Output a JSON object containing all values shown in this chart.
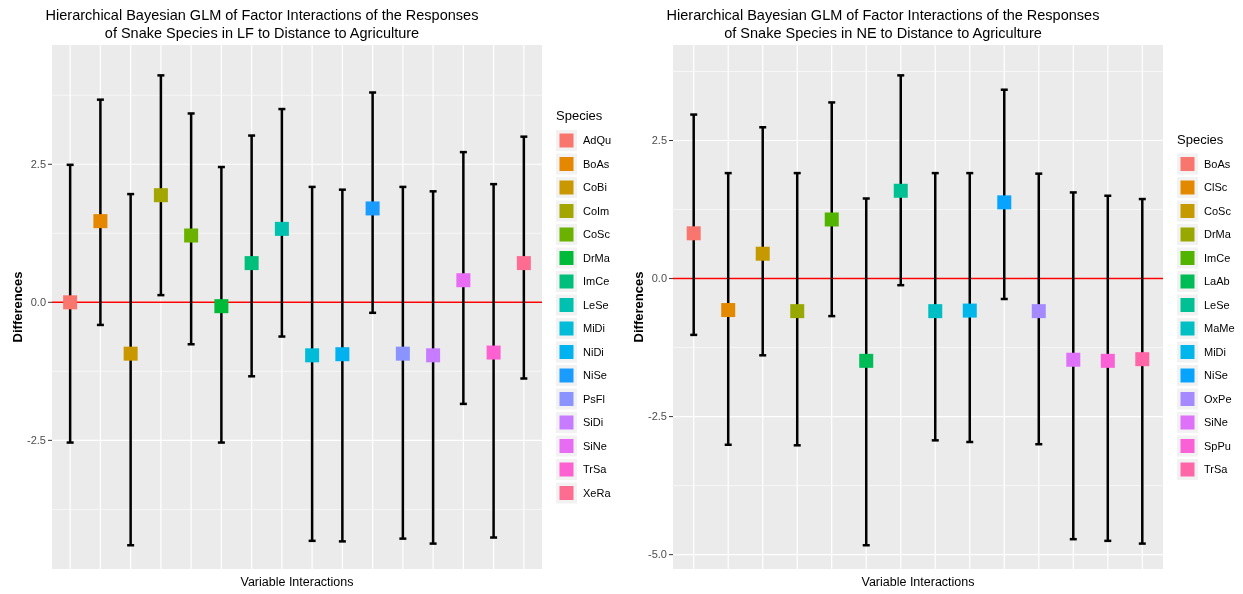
{
  "chart_data": [
    {
      "type": "scatter",
      "title": "Hierarchical Bayesian GLM of Factor Interactions of the Responses\nof Snake Species in LF to Distance to Agriculture",
      "xlabel": "Variable Interactions",
      "ylabel": "Differences",
      "legend_title": "Species",
      "legend": "right",
      "grid": true,
      "marker": "square",
      "ylim": [
        -4.83,
        4.66
      ],
      "yticks": [
        {
          "value": -2.5,
          "label": "-2.5"
        },
        {
          "value": 0,
          "label": "0.0"
        },
        {
          "value": 2.5,
          "label": "2.5"
        }
      ],
      "categories": [
        null,
        null,
        null,
        null,
        null,
        null,
        null,
        null,
        null,
        null,
        null,
        null,
        null,
        null,
        null,
        null
      ],
      "ref_lines": [
        {
          "axis": "y",
          "value": 0,
          "color": "#ff0000"
        }
      ],
      "series": [
        {
          "name": "AdQu",
          "color": "#f8766d",
          "values": [
            0.0,
            null,
            null,
            null,
            null,
            null,
            null,
            null,
            null,
            null,
            null,
            null,
            null,
            null,
            null,
            null
          ],
          "errors": [
            [
              -2.54,
              2.49
            ],
            null,
            null,
            null,
            null,
            null,
            null,
            null,
            null,
            null,
            null,
            null,
            null,
            null,
            null,
            null
          ]
        },
        {
          "name": "BoAs",
          "color": "#e58700",
          "values": [
            null,
            1.47,
            null,
            null,
            null,
            null,
            null,
            null,
            null,
            null,
            null,
            null,
            null,
            null,
            null,
            null
          ],
          "errors": [
            null,
            [
              -0.41,
              3.67
            ],
            null,
            null,
            null,
            null,
            null,
            null,
            null,
            null,
            null,
            null,
            null,
            null,
            null,
            null
          ]
        },
        {
          "name": "CoBi",
          "color": "#c99800",
          "values": [
            null,
            null,
            -0.93,
            null,
            null,
            null,
            null,
            null,
            null,
            null,
            null,
            null,
            null,
            null,
            null,
            null
          ],
          "errors": [
            null,
            null,
            [
              -4.4,
              1.96
            ],
            null,
            null,
            null,
            null,
            null,
            null,
            null,
            null,
            null,
            null,
            null,
            null,
            null
          ]
        },
        {
          "name": "CoIm",
          "color": "#a3a500",
          "values": [
            null,
            null,
            null,
            1.94,
            null,
            null,
            null,
            null,
            null,
            null,
            null,
            null,
            null,
            null,
            null,
            null
          ],
          "errors": [
            null,
            null,
            null,
            [
              0.13,
              4.11
            ],
            null,
            null,
            null,
            null,
            null,
            null,
            null,
            null,
            null,
            null,
            null,
            null
          ]
        },
        {
          "name": "CoSc",
          "color": "#6bb100",
          "values": [
            null,
            null,
            null,
            null,
            1.21,
            null,
            null,
            null,
            null,
            null,
            null,
            null,
            null,
            null,
            null,
            null
          ],
          "errors": [
            null,
            null,
            null,
            null,
            [
              -0.76,
              3.42
            ],
            null,
            null,
            null,
            null,
            null,
            null,
            null,
            null,
            null,
            null,
            null
          ]
        },
        {
          "name": "DrMa",
          "color": "#00ba38",
          "values": [
            null,
            null,
            null,
            null,
            null,
            -0.07,
            null,
            null,
            null,
            null,
            null,
            null,
            null,
            null,
            null,
            null
          ],
          "errors": [
            null,
            null,
            null,
            null,
            null,
            [
              -2.54,
              2.45
            ],
            null,
            null,
            null,
            null,
            null,
            null,
            null,
            null,
            null,
            null
          ]
        },
        {
          "name": "ImCe",
          "color": "#00bf7d",
          "values": [
            null,
            null,
            null,
            null,
            null,
            null,
            0.71,
            null,
            null,
            null,
            null,
            null,
            null,
            null,
            null,
            null
          ],
          "errors": [
            null,
            null,
            null,
            null,
            null,
            null,
            [
              -1.34,
              3.02
            ],
            null,
            null,
            null,
            null,
            null,
            null,
            null,
            null,
            null
          ]
        },
        {
          "name": "LeSe",
          "color": "#00c0af",
          "values": [
            null,
            null,
            null,
            null,
            null,
            null,
            null,
            1.33,
            null,
            null,
            null,
            null,
            null,
            null,
            null,
            null
          ],
          "errors": [
            null,
            null,
            null,
            null,
            null,
            null,
            null,
            [
              -0.62,
              3.5
            ],
            null,
            null,
            null,
            null,
            null,
            null,
            null,
            null
          ]
        },
        {
          "name": "MiDi",
          "color": "#00bcd8",
          "values": [
            null,
            null,
            null,
            null,
            null,
            null,
            null,
            null,
            -0.96,
            null,
            null,
            null,
            null,
            null,
            null,
            null
          ],
          "errors": [
            null,
            null,
            null,
            null,
            null,
            null,
            null,
            null,
            [
              -4.32,
              2.09
            ],
            null,
            null,
            null,
            null,
            null,
            null,
            null
          ]
        },
        {
          "name": "NiDi",
          "color": "#00b2f0",
          "values": [
            null,
            null,
            null,
            null,
            null,
            null,
            null,
            null,
            null,
            -0.94,
            null,
            null,
            null,
            null,
            null,
            null
          ],
          "errors": [
            null,
            null,
            null,
            null,
            null,
            null,
            null,
            null,
            null,
            [
              -4.33,
              2.04
            ],
            null,
            null,
            null,
            null,
            null,
            null
          ]
        },
        {
          "name": "NiSe",
          "color": "#1a9cff",
          "values": [
            null,
            null,
            null,
            null,
            null,
            null,
            null,
            null,
            null,
            null,
            1.7,
            null,
            null,
            null,
            null,
            null
          ],
          "errors": [
            null,
            null,
            null,
            null,
            null,
            null,
            null,
            null,
            null,
            null,
            [
              -0.19,
              3.8
            ],
            null,
            null,
            null,
            null,
            null
          ]
        },
        {
          "name": "PsFl",
          "color": "#8b93ff",
          "values": [
            null,
            null,
            null,
            null,
            null,
            null,
            null,
            null,
            null,
            null,
            null,
            -0.93,
            null,
            null,
            null,
            null
          ],
          "errors": [
            null,
            null,
            null,
            null,
            null,
            null,
            null,
            null,
            null,
            null,
            null,
            [
              -4.28,
              2.09
            ],
            null,
            null,
            null,
            null
          ]
        },
        {
          "name": "SiDi",
          "color": "#c77cff",
          "values": [
            null,
            null,
            null,
            null,
            null,
            null,
            null,
            null,
            null,
            null,
            null,
            null,
            -0.96,
            null,
            null,
            null
          ],
          "errors": [
            null,
            null,
            null,
            null,
            null,
            null,
            null,
            null,
            null,
            null,
            null,
            null,
            [
              -4.37,
              2.01
            ],
            null,
            null,
            null
          ]
        },
        {
          "name": "SiNe",
          "color": "#e76bf3",
          "values": [
            null,
            null,
            null,
            null,
            null,
            null,
            null,
            null,
            null,
            null,
            null,
            null,
            null,
            0.4,
            null,
            null
          ],
          "errors": [
            null,
            null,
            null,
            null,
            null,
            null,
            null,
            null,
            null,
            null,
            null,
            null,
            null,
            [
              -1.84,
              2.72
            ],
            null,
            null
          ]
        },
        {
          "name": "TrSa",
          "color": "#fd61d1",
          "values": [
            null,
            null,
            null,
            null,
            null,
            null,
            null,
            null,
            null,
            null,
            null,
            null,
            null,
            null,
            -0.91,
            null
          ],
          "errors": [
            null,
            null,
            null,
            null,
            null,
            null,
            null,
            null,
            null,
            null,
            null,
            null,
            null,
            null,
            [
              -4.26,
              2.14
            ],
            null
          ]
        },
        {
          "name": "XeRa",
          "color": "#ff6c91",
          "values": [
            null,
            null,
            null,
            null,
            null,
            null,
            null,
            null,
            null,
            null,
            null,
            null,
            null,
            null,
            null,
            0.71
          ],
          "errors": [
            null,
            null,
            null,
            null,
            null,
            null,
            null,
            null,
            null,
            null,
            null,
            null,
            null,
            null,
            null,
            [
              -1.38,
              3.0
            ]
          ]
        }
      ]
    },
    {
      "type": "scatter",
      "title": "Hierarchical Bayesian GLM of Factor Interactions of the Responses\nof Snake Species in NE to Distance to Agriculture",
      "xlabel": "Variable Interactions",
      "ylabel": "Differences",
      "legend_title": "Species",
      "legend": "right",
      "grid": true,
      "marker": "square",
      "ylim": [
        -5.26,
        4.23
      ],
      "yticks": [
        {
          "value": -5,
          "label": "-5.0"
        },
        {
          "value": -2.5,
          "label": "-2.5"
        },
        {
          "value": 0,
          "label": "0.0"
        },
        {
          "value": 2.5,
          "label": "2.5"
        }
      ],
      "categories": [
        null,
        null,
        null,
        null,
        null,
        null,
        null,
        null,
        null,
        null,
        null,
        null,
        null,
        null
      ],
      "ref_lines": [
        {
          "axis": "y",
          "value": 0,
          "color": "#ff0000"
        }
      ],
      "series": [
        {
          "name": "BoAs",
          "color": "#f8766d",
          "values": [
            0.82,
            null,
            null,
            null,
            null,
            null,
            null,
            null,
            null,
            null,
            null,
            null,
            null,
            null
          ],
          "errors": [
            [
              -1.02,
              2.97
            ],
            null,
            null,
            null,
            null,
            null,
            null,
            null,
            null,
            null,
            null,
            null,
            null,
            null
          ]
        },
        {
          "name": "ClSc",
          "color": "#e38900",
          "values": [
            null,
            -0.57,
            null,
            null,
            null,
            null,
            null,
            null,
            null,
            null,
            null,
            null,
            null,
            null
          ],
          "errors": [
            null,
            [
              -3.01,
              1.91
            ],
            null,
            null,
            null,
            null,
            null,
            null,
            null,
            null,
            null,
            null,
            null,
            null
          ]
        },
        {
          "name": "CoSc",
          "color": "#c49a00",
          "values": [
            null,
            null,
            0.45,
            null,
            null,
            null,
            null,
            null,
            null,
            null,
            null,
            null,
            null,
            null
          ],
          "errors": [
            null,
            null,
            [
              -1.39,
              2.74
            ],
            null,
            null,
            null,
            null,
            null,
            null,
            null,
            null,
            null,
            null,
            null
          ]
        },
        {
          "name": "DrMa",
          "color": "#99a800",
          "values": [
            null,
            null,
            null,
            -0.59,
            null,
            null,
            null,
            null,
            null,
            null,
            null,
            null,
            null,
            null
          ],
          "errors": [
            null,
            null,
            null,
            [
              -3.02,
              1.91
            ],
            null,
            null,
            null,
            null,
            null,
            null,
            null,
            null,
            null,
            null
          ]
        },
        {
          "name": "ImCe",
          "color": "#53b400",
          "values": [
            null,
            null,
            null,
            null,
            1.07,
            null,
            null,
            null,
            null,
            null,
            null,
            null,
            null,
            null
          ],
          "errors": [
            null,
            null,
            null,
            null,
            [
              -0.68,
              3.19
            ],
            null,
            null,
            null,
            null,
            null,
            null,
            null,
            null,
            null
          ]
        },
        {
          "name": "LaAb",
          "color": "#00bc56",
          "values": [
            null,
            null,
            null,
            null,
            null,
            -1.49,
            null,
            null,
            null,
            null,
            null,
            null,
            null,
            null
          ],
          "errors": [
            null,
            null,
            null,
            null,
            null,
            [
              -4.83,
              1.45
            ],
            null,
            null,
            null,
            null,
            null,
            null,
            null,
            null
          ]
        },
        {
          "name": "LeSe",
          "color": "#00c094",
          "values": [
            null,
            null,
            null,
            null,
            null,
            null,
            1.59,
            null,
            null,
            null,
            null,
            null,
            null,
            null
          ],
          "errors": [
            null,
            null,
            null,
            null,
            null,
            null,
            [
              -0.12,
              3.68
            ],
            null,
            null,
            null,
            null,
            null,
            null,
            null
          ]
        },
        {
          "name": "MaMe",
          "color": "#00bfc4",
          "values": [
            null,
            null,
            null,
            null,
            null,
            null,
            null,
            -0.59,
            null,
            null,
            null,
            null,
            null,
            null
          ],
          "errors": [
            null,
            null,
            null,
            null,
            null,
            null,
            null,
            [
              -2.93,
              1.91
            ],
            null,
            null,
            null,
            null,
            null,
            null
          ]
        },
        {
          "name": "MiDi",
          "color": "#00b6eb",
          "values": [
            null,
            null,
            null,
            null,
            null,
            null,
            null,
            null,
            -0.58,
            null,
            null,
            null,
            null,
            null
          ],
          "errors": [
            null,
            null,
            null,
            null,
            null,
            null,
            null,
            null,
            [
              -2.96,
              1.91
            ],
            null,
            null,
            null,
            null,
            null
          ]
        },
        {
          "name": "NiSe",
          "color": "#06a4ff",
          "values": [
            null,
            null,
            null,
            null,
            null,
            null,
            null,
            null,
            null,
            1.38,
            null,
            null,
            null,
            null
          ],
          "errors": [
            null,
            null,
            null,
            null,
            null,
            null,
            null,
            null,
            null,
            [
              -0.37,
              3.42
            ],
            null,
            null,
            null,
            null
          ]
        },
        {
          "name": "OxPe",
          "color": "#a58aff",
          "values": [
            null,
            null,
            null,
            null,
            null,
            null,
            null,
            null,
            null,
            null,
            -0.59,
            null,
            null,
            null
          ],
          "errors": [
            null,
            null,
            null,
            null,
            null,
            null,
            null,
            null,
            null,
            null,
            [
              -3.0,
              1.9
            ],
            null,
            null,
            null
          ]
        },
        {
          "name": "SiNe",
          "color": "#df70f8",
          "values": [
            null,
            null,
            null,
            null,
            null,
            null,
            null,
            null,
            null,
            null,
            null,
            -1.47,
            null,
            null
          ],
          "errors": [
            null,
            null,
            null,
            null,
            null,
            null,
            null,
            null,
            null,
            null,
            null,
            [
              -4.72,
              1.56
            ],
            null,
            null
          ]
        },
        {
          "name": "SpPu",
          "color": "#fb61d7",
          "values": [
            null,
            null,
            null,
            null,
            null,
            null,
            null,
            null,
            null,
            null,
            null,
            null,
            -1.49,
            null
          ],
          "errors": [
            null,
            null,
            null,
            null,
            null,
            null,
            null,
            null,
            null,
            null,
            null,
            null,
            [
              -4.75,
              1.5
            ],
            null
          ]
        },
        {
          "name": "TrSa",
          "color": "#ff66a8",
          "values": [
            null,
            null,
            null,
            null,
            null,
            null,
            null,
            null,
            null,
            null,
            null,
            null,
            null,
            -1.46
          ],
          "errors": [
            null,
            null,
            null,
            null,
            null,
            null,
            null,
            null,
            null,
            null,
            null,
            null,
            null,
            [
              -4.8,
              1.44
            ]
          ]
        }
      ]
    }
  ]
}
